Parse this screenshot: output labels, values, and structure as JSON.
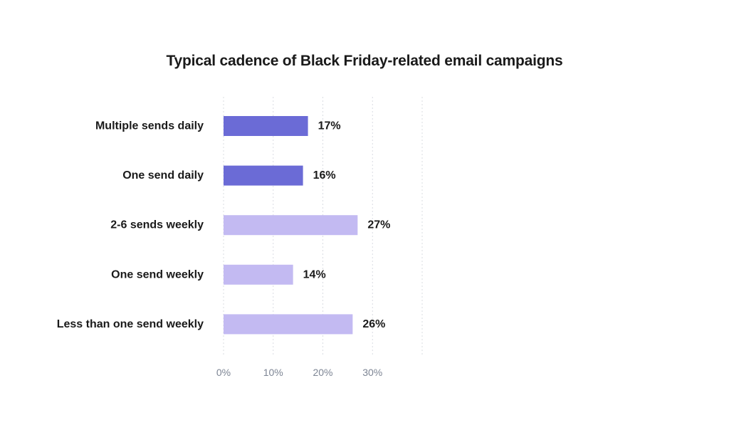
{
  "chart_data": {
    "type": "bar",
    "orientation": "horizontal",
    "title": "Typical cadence of Black Friday-related email campaigns",
    "categories": [
      "Multiple sends daily",
      "One send daily",
      "2-6 sends weekly",
      "One send weekly",
      "Less than one send weekly"
    ],
    "values": [
      17,
      16,
      27,
      14,
      26
    ],
    "value_labels": [
      "17%",
      "16%",
      "27%",
      "14%",
      "26%"
    ],
    "bar_colors": [
      "#6b6bd6",
      "#6b6bd6",
      "#c3baf2",
      "#c3baf2",
      "#c3baf2"
    ],
    "xlim": [
      0,
      40
    ],
    "xticks": [
      0,
      10,
      20,
      30,
      40
    ],
    "xtick_labels": [
      "0%",
      "10%",
      "20%",
      "30%",
      ""
    ],
    "grid": true,
    "grid_color": "#d9dce2",
    "tick_color": "#7d8594",
    "text_color": "#1a1a1a"
  }
}
